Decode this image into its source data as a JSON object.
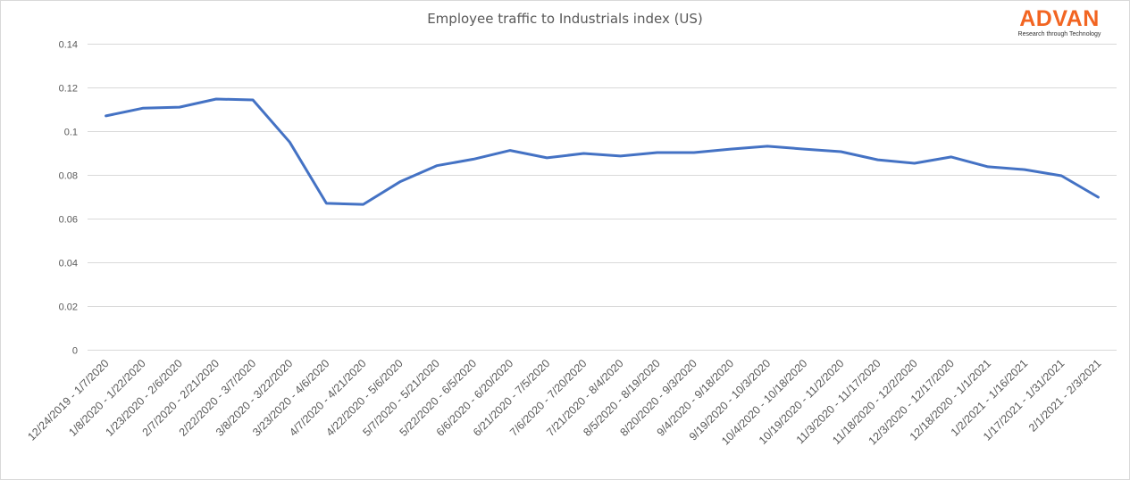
{
  "chart": {
    "title": "Employee traffic to Industrials index (US)"
  },
  "logo": {
    "name": "ADVAN",
    "tagline": "Research through Technology",
    "color": "#f26522"
  },
  "colors": {
    "line": "#4472c4",
    "grid": "#d9d9d9",
    "text": "#595959"
  },
  "chart_data": {
    "type": "line",
    "title": "Employee traffic to Industrials index (US)",
    "xlabel": "",
    "ylabel": "",
    "ylim": [
      0,
      0.14
    ],
    "yticks": [
      "0",
      "0.02",
      "0.04",
      "0.06",
      "0.08",
      "0.1",
      "0.12",
      "0.14"
    ],
    "grid": true,
    "legend": "none",
    "categories": [
      "12/24/2019 - 1/7/2020",
      "1/8/2020 - 1/22/2020",
      "1/23/2020 - 2/6/2020",
      "2/7/2020 - 2/21/2020",
      "2/22/2020 - 3/7/2020",
      "3/8/2020 - 3/22/2020",
      "3/23/2020 - 4/6/2020",
      "4/7/2020 - 4/21/2020",
      "4/22/2020 - 5/6/2020",
      "5/7/2020 - 5/21/2020",
      "5/22/2020 - 6/5/2020",
      "6/6/2020 - 6/20/2020",
      "6/21/2020 - 7/5/2020",
      "7/6/2020 - 7/20/2020",
      "7/21/2020 - 8/4/2020",
      "8/5/2020 - 8/19/2020",
      "8/20/2020 - 9/3/2020",
      "9/4/2020 - 9/18/2020",
      "9/19/2020 - 10/3/2020",
      "10/4/2020 - 10/18/2020",
      "10/19/2020 - 11/2/2020",
      "11/3/2020 - 11/17/2020",
      "11/18/2020 - 12/2/2020",
      "12/3/2020 - 12/17/2020",
      "12/18/2020 - 1/1/2021",
      "1/2/2021 - 1/16/2021",
      "1/17/2021 - 1/31/2021",
      "2/1/2021 - 2/3/2021"
    ],
    "series": [
      {
        "name": "Employee traffic to Industrials index (US)",
        "values": [
          0.107,
          0.1105,
          0.111,
          0.1147,
          0.1143,
          0.095,
          0.067,
          0.0665,
          0.0768,
          0.0842,
          0.0872,
          0.0912,
          0.0878,
          0.0898,
          0.0886,
          0.0902,
          0.0902,
          0.0918,
          0.0931,
          0.0918,
          0.0906,
          0.0869,
          0.0853,
          0.0882,
          0.0837,
          0.0824,
          0.0796,
          0.0698
        ]
      }
    ]
  }
}
